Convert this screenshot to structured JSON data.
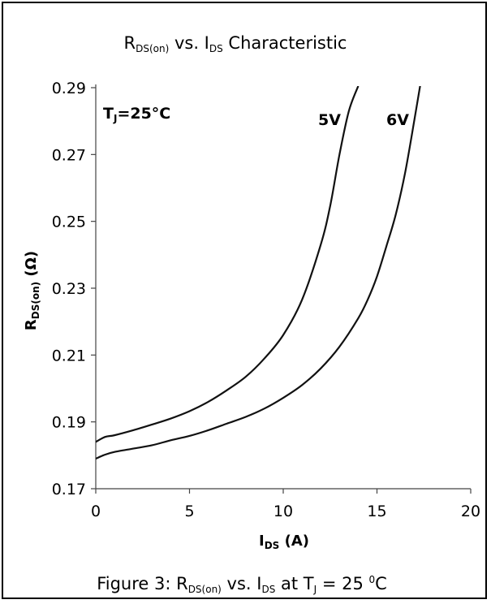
{
  "chart_data": {
    "type": "line",
    "title": {
      "main": "R",
      "sub": "DS(on)",
      "rest1": " vs. I",
      "sub2": "DS",
      "rest2": " Characteristic"
    },
    "xlabel": {
      "main": "I",
      "sub": "DS",
      "rest": " (A)"
    },
    "ylabel": {
      "main": "R",
      "sub": "DS(on)",
      "rest": " (Ω)"
    },
    "xlim": [
      0,
      20
    ],
    "ylim": [
      0.17,
      0.29
    ],
    "x_ticks": [
      "0",
      "5",
      "10",
      "15",
      "20"
    ],
    "y_ticks": [
      "0.17",
      "0.19",
      "0.21",
      "0.23",
      "0.25",
      "0.27",
      "0.29"
    ],
    "grid": "horizontal",
    "annotations": {
      "tj": {
        "main": "T",
        "sub": "J",
        "rest": "=25°C"
      }
    },
    "series": [
      {
        "name": "5V",
        "x": [
          0,
          0.5,
          1,
          2,
          3,
          4,
          5,
          6,
          7,
          8,
          9,
          10,
          11,
          12,
          12.5,
          13,
          13.5,
          14
        ],
        "y": [
          0.184,
          0.1855,
          0.186,
          0.1875,
          0.1892,
          0.191,
          0.1932,
          0.196,
          0.1995,
          0.2035,
          0.209,
          0.216,
          0.2265,
          0.243,
          0.2545,
          0.27,
          0.283,
          0.2905
        ]
      },
      {
        "name": "6V",
        "x": [
          0,
          0.5,
          1,
          2,
          3,
          4,
          5,
          6,
          7,
          8,
          9,
          10,
          11,
          12,
          13,
          14,
          14.5,
          15,
          15.5,
          16,
          16.5,
          17,
          17.3
        ],
        "y": [
          0.179,
          0.1802,
          0.181,
          0.182,
          0.183,
          0.1845,
          0.1858,
          0.1875,
          0.1895,
          0.1915,
          0.194,
          0.1972,
          0.201,
          0.206,
          0.2125,
          0.221,
          0.2265,
          0.2335,
          0.2425,
          0.252,
          0.2645,
          0.2805,
          0.2905
        ]
      }
    ]
  },
  "caption": {
    "pre": "Figure 3: R",
    "sub1": "DS(on)",
    "mid1": " vs. I",
    "sub2": "DS",
    "mid2": "  at T",
    "sub3": "J",
    "mid3": " = 25 ",
    "sup": "0",
    "post": "C"
  }
}
